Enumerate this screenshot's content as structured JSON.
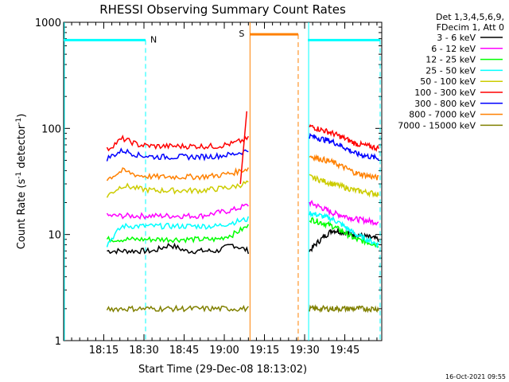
{
  "chart_data": {
    "type": "line",
    "title": "RHESSI Observing Summary Count Rates",
    "xlabel": "Start Time (29-Dec-08 18:13:02)",
    "ylabel_main": "Count Rate (s",
    "ylabel_sup1": "-1",
    "ylabel_mid": " detector",
    "ylabel_sup2": "-1",
    "ylabel_end": ")",
    "yscale": "log",
    "ylim": [
      1,
      1000
    ],
    "xlim_minutes": [
      18.0,
      19.98
    ],
    "x_ticks": [
      {
        "label": "18:15",
        "t": 18.25
      },
      {
        "label": "18:30",
        "t": 18.5
      },
      {
        "label": "18:45",
        "t": 18.75
      },
      {
        "label": "19:00",
        "t": 19.0
      },
      {
        "label": "19:15",
        "t": 19.25
      },
      {
        "label": "19:30",
        "t": 19.5
      },
      {
        "label": "19:45",
        "t": 19.75
      }
    ],
    "y_ticks": [
      {
        "label": "1",
        "v": 1
      },
      {
        "label": "10",
        "v": 10
      },
      {
        "label": "100",
        "v": 100
      },
      {
        "label": "1000",
        "v": 1000
      }
    ],
    "legend_header": [
      "Det 1,3,4,5,6,9,",
      "FDecim 1, Att 0"
    ],
    "series": [
      {
        "name": "3 - 6 keV",
        "color": "#000000",
        "values": [
          7,
          7,
          7,
          7,
          8,
          7,
          7,
          7,
          8,
          7,
          7,
          11,
          10,
          9
        ]
      },
      {
        "name": "6 - 12 keV",
        "color": "#ff00ff",
        "values": [
          15,
          15,
          15,
          15,
          15,
          15,
          15,
          16,
          17,
          19,
          20,
          16,
          14,
          13
        ]
      },
      {
        "name": "12 - 25 keV",
        "color": "#00ff00",
        "values": [
          9,
          9,
          9,
          9,
          9,
          9,
          9,
          9,
          10,
          12,
          14,
          12,
          9,
          8
        ]
      },
      {
        "name": "25 - 50 keV",
        "color": "#00ffff",
        "values": [
          8,
          12,
          12,
          12,
          12,
          12,
          12,
          12,
          13,
          14,
          16,
          14,
          10,
          8
        ]
      },
      {
        "name": "50 - 100 keV",
        "color": "#cccc00",
        "values": [
          23,
          29,
          27,
          26,
          26,
          26,
          26,
          27,
          28,
          31,
          35,
          30,
          26,
          24
        ]
      },
      {
        "name": "100 - 300 keV",
        "color": "#ff0000",
        "values": [
          63,
          80,
          70,
          68,
          68,
          68,
          68,
          68,
          72,
          80,
          105,
          90,
          72,
          65
        ]
      },
      {
        "name": "300 - 800 keV",
        "color": "#0000ff",
        "values": [
          52,
          62,
          56,
          54,
          54,
          54,
          54,
          55,
          57,
          62,
          85,
          75,
          58,
          52
        ]
      },
      {
        "name": "800 - 7000 keV",
        "color": "#ff8000",
        "values": [
          33,
          40,
          36,
          35,
          35,
          35,
          35,
          36,
          38,
          42,
          55,
          48,
          38,
          34
        ]
      },
      {
        "name": "7000 - 15000 keV",
        "color": "#808000",
        "values": [
          2,
          2,
          2,
          2,
          2,
          2,
          2,
          2,
          2,
          2,
          2,
          2,
          2,
          2
        ]
      }
    ],
    "annotations": [
      {
        "text": "N",
        "color": "#00ffff"
      },
      {
        "text": "S",
        "color": "#ff8000"
      }
    ],
    "footer": "16-Oct-2021 09:55"
  }
}
